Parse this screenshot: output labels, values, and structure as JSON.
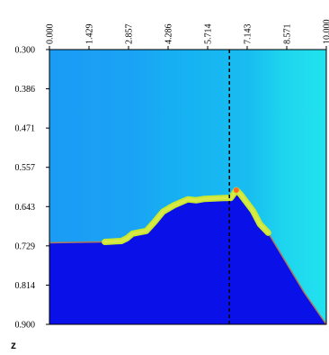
{
  "chart_data": {
    "type": "area",
    "title": "",
    "xlabel": "z",
    "ylabel": "",
    "xlim": [
      0,
      10
    ],
    "ylim": [
      0.3,
      0.9
    ],
    "y_inverted": true,
    "x_tick_labels": [
      "0.000",
      "1.429",
      "2.857",
      "4.286",
      "5.714",
      "7.143",
      "8.571",
      "10.000"
    ],
    "y_tick_labels": [
      "0.300",
      "0.386",
      "0.471",
      "0.557",
      "0.643",
      "0.729",
      "0.814",
      "0.900"
    ],
    "vertical_marker_x": 6.5,
    "grid": false,
    "colors": {
      "background_left": "#1a9cf5",
      "background_mid": "#16b0f2",
      "background_right": "#1ed6ee",
      "fill_region": "#0a10e8",
      "interface_line": "#c8e830",
      "interface_core": "#dbe84a",
      "marker_line": "#000000",
      "boundary_line": "#b0785a",
      "peak_marker": "#ff6a20"
    },
    "series": [
      {
        "values": [
          {
            "x": 0.0,
            "y": 0.722
          },
          {
            "x": 2.0,
            "y": 0.72
          },
          {
            "x": 2.6,
            "y": 0.718
          },
          {
            "x": 2.8,
            "y": 0.712
          },
          {
            "x": 3.0,
            "y": 0.702
          },
          {
            "x": 3.5,
            "y": 0.696
          },
          {
            "x": 3.8,
            "y": 0.676
          },
          {
            "x": 4.1,
            "y": 0.654
          },
          {
            "x": 4.5,
            "y": 0.64
          },
          {
            "x": 5.0,
            "y": 0.627
          },
          {
            "x": 5.3,
            "y": 0.629
          },
          {
            "x": 5.6,
            "y": 0.626
          },
          {
            "x": 6.3,
            "y": 0.624
          },
          {
            "x": 6.55,
            "y": 0.624
          },
          {
            "x": 6.75,
            "y": 0.607
          },
          {
            "x": 6.9,
            "y": 0.616
          },
          {
            "x": 7.1,
            "y": 0.632
          },
          {
            "x": 7.35,
            "y": 0.652
          },
          {
            "x": 7.6,
            "y": 0.681
          },
          {
            "x": 7.9,
            "y": 0.7
          },
          {
            "x": 8.5,
            "y": 0.76
          },
          {
            "x": 9.2,
            "y": 0.83
          },
          {
            "x": 10.0,
            "y": 0.9
          }
        ]
      }
    ]
  }
}
